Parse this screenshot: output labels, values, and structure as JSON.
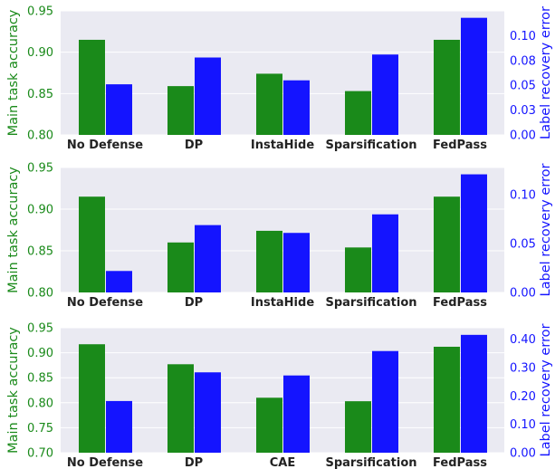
{
  "colors": {
    "accuracy": "#1a8a1a",
    "recovery": "#1414ff",
    "plot_bg": "#eaeaf2",
    "grid": "#ffffff"
  },
  "chart_data": [
    {
      "type": "bar",
      "categories": [
        "No Defense",
        "DP",
        "InstaHide",
        "Sparsification",
        "FedPass"
      ],
      "series": [
        {
          "axis": "left",
          "values": [
            0.915,
            0.859,
            0.874,
            0.853,
            0.915
          ]
        },
        {
          "axis": "right",
          "values": [
            0.051,
            0.078,
            0.055,
            0.081,
            0.118
          ]
        }
      ],
      "ylabel": "Main task accuracy",
      "y2label": "Label recovery error",
      "ylim": [
        0.8,
        0.95
      ],
      "y2lim": [
        0.0,
        0.125
      ],
      "yticks": [
        "0.80",
        "0.85",
        "0.90",
        "0.95"
      ],
      "y2ticks": [
        "0.00",
        "0.03",
        "0.05",
        "0.08",
        "0.10"
      ],
      "y2tick_values": [
        0.0,
        0.025,
        0.05,
        0.075,
        0.1
      ],
      "grid": true
    },
    {
      "type": "bar",
      "categories": [
        "No Defense",
        "DP",
        "InstaHide",
        "Sparsification",
        "FedPass"
      ],
      "series": [
        {
          "axis": "left",
          "values": [
            0.915,
            0.86,
            0.874,
            0.854,
            0.915
          ]
        },
        {
          "axis": "right",
          "values": [
            0.022,
            0.069,
            0.061,
            0.08,
            0.121
          ]
        }
      ],
      "ylabel": "Main task accuracy",
      "y2label": "Label recovery error",
      "ylim": [
        0.8,
        0.95
      ],
      "y2lim": [
        0.0,
        0.128
      ],
      "yticks": [
        "0.80",
        "0.85",
        "0.90",
        "0.95"
      ],
      "y2ticks": [
        "0.00",
        "0.05",
        "0.10"
      ],
      "y2tick_values": [
        0.0,
        0.05,
        0.1
      ],
      "grid": true
    },
    {
      "type": "bar",
      "categories": [
        "No Defense",
        "DP",
        "CAE",
        "Sparsification",
        "FedPass"
      ],
      "series": [
        {
          "axis": "left",
          "values": [
            0.917,
            0.877,
            0.81,
            0.803,
            0.912
          ]
        },
        {
          "axis": "right",
          "values": [
            0.182,
            0.283,
            0.272,
            0.358,
            0.415
          ]
        }
      ],
      "ylabel": "Main task accuracy",
      "y2label": "Label recovery error",
      "ylim": [
        0.7,
        0.95
      ],
      "y2lim": [
        0.0,
        0.44
      ],
      "yticks": [
        "0.70",
        "0.75",
        "0.80",
        "0.85",
        "0.90",
        "0.95"
      ],
      "y2ticks": [
        "0.00",
        "0.10",
        "0.20",
        "0.30",
        "0.40"
      ],
      "y2tick_values": [
        0.0,
        0.1,
        0.2,
        0.3,
        0.4
      ],
      "grid": true
    }
  ]
}
